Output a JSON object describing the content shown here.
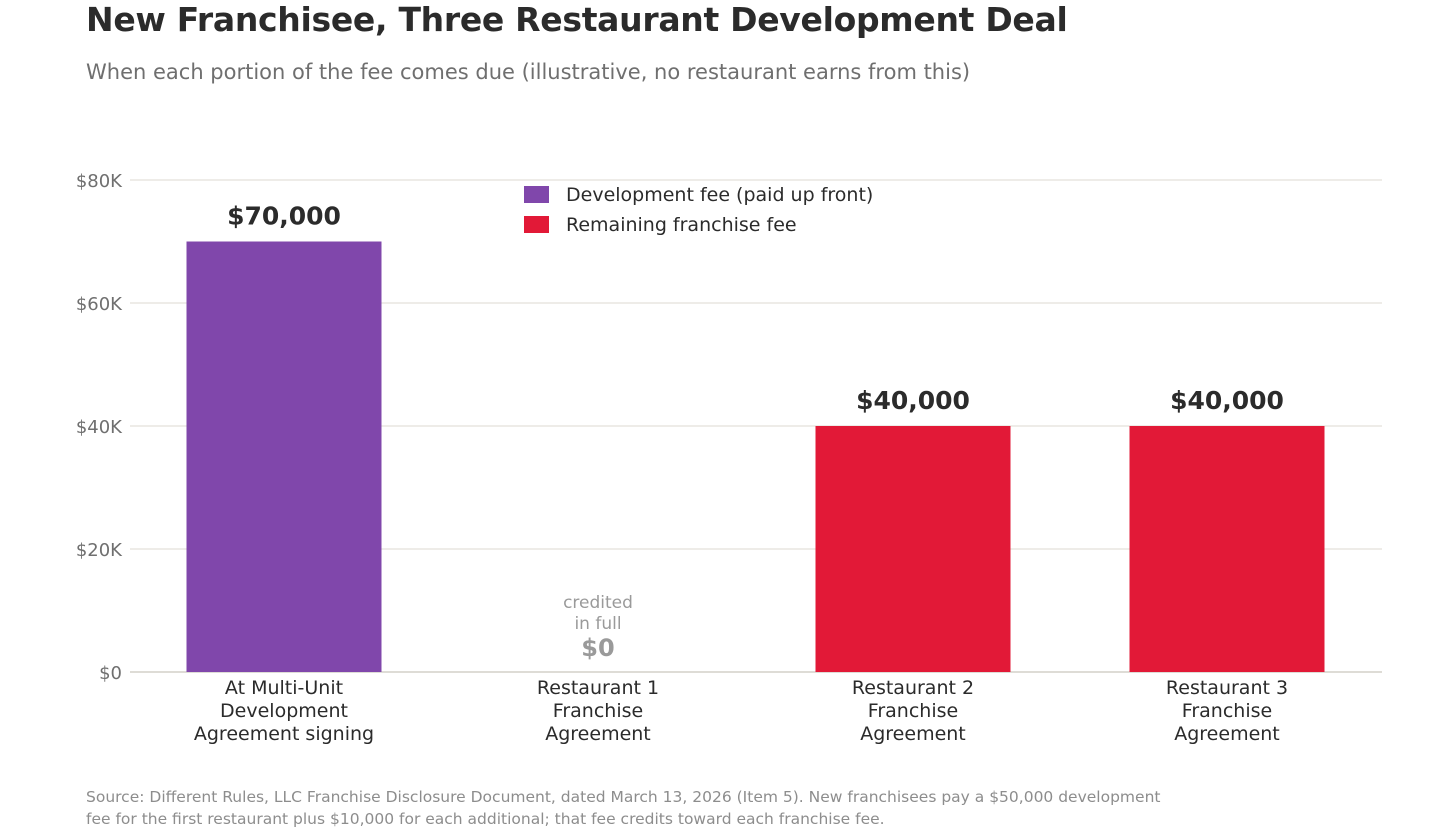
{
  "title": "New Franchisee, Three Restaurant Development Deal",
  "subtitle": "When each portion of the fee comes due (illustrative, no restaurant earns from this)",
  "source": "Source: Different Rules, LLC Franchise Disclosure Document, dated March 13, 2026 (Item 5). New franchisees pay a $50,000 development fee for the first restaurant plus $10,000 for each additional; that fee credits toward each franchise fee.",
  "colors": {
    "development": "#8047ab",
    "franchise": "#e21937",
    "grid": "#e4e1d9",
    "axis_text": "#6f6f6f",
    "label_text": "#2b2b2b",
    "muted_text": "#9a9a9a"
  },
  "chart_data": {
    "type": "bar",
    "title": "New Franchisee, Three Restaurant Development Deal",
    "subtitle": "When each portion of the fee comes due (illustrative, no restaurant earns from this)",
    "categories": [
      [
        "At Multi-Unit",
        "Development",
        "Agreement signing"
      ],
      [
        "Restaurant 1",
        "Franchise",
        "Agreement"
      ],
      [
        "Restaurant 2",
        "Franchise",
        "Agreement"
      ],
      [
        "Restaurant 3",
        "Franchise",
        "Agreement"
      ]
    ],
    "values": [
      70000,
      0,
      40000,
      40000
    ],
    "value_labels": [
      "$70,000",
      "$0",
      "$40,000",
      "$40,000"
    ],
    "bar_series": [
      "Development fee (paid up front)",
      "Remaining franchise fee",
      "Remaining franchise fee",
      "Remaining franchise fee"
    ],
    "series": [
      {
        "name": "Development fee (paid up front)",
        "color": "#8047ab"
      },
      {
        "name": "Remaining franchise fee",
        "color": "#e21937"
      }
    ],
    "annotations": [
      {
        "category_index": 1,
        "lines": [
          "credited",
          "in full"
        ]
      }
    ],
    "xlabel": "",
    "ylabel": "",
    "ylim": [
      0,
      80000
    ],
    "yticks": [
      0,
      20000,
      40000,
      60000,
      80000
    ],
    "ytick_labels": [
      "$0",
      "$20K",
      "$40K",
      "$60K",
      "$80K"
    ],
    "grid": true,
    "legend_position": "top-center"
  }
}
